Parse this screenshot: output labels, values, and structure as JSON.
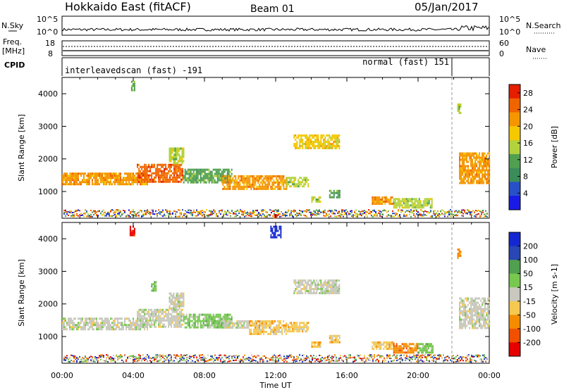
{
  "header": {
    "station": "Hokkaido East (fitACF)",
    "beam": "Beam 01",
    "date": "05/Jan/2017"
  },
  "noise_panel": {
    "left_label": "N.Sky",
    "right_label": "N.Search",
    "left_ticks": [
      "10^5",
      "10^0"
    ],
    "right_ticks": [
      "10^5",
      "10^0"
    ]
  },
  "freq_panel": {
    "left_label_line1": "Freq.",
    "left_label_line2": "[MHz]",
    "left_ticks": [
      "18",
      "8"
    ],
    "right_ticks": [
      "60",
      "0"
    ],
    "right_label": "Nave"
  },
  "cpid_panel": {
    "label": "CPID",
    "modes": [
      {
        "text": "interleavedscan (fast) -191",
        "start_hour": 0,
        "end_hour": 21.9
      },
      {
        "text": "normal (fast) 151",
        "start_hour": 21.9,
        "end_hour": 24
      }
    ]
  },
  "colors": {
    "power": [
      "#1a1ae6",
      "#2850c8",
      "#3c8c5a",
      "#50a050",
      "#b4d23c",
      "#f5c800",
      "#f59600",
      "#f06400",
      "#e61e00"
    ],
    "velocity": [
      "#e60000",
      "#f05000",
      "#f58c00",
      "#f5c850",
      "#c8c8be",
      "#78c850",
      "#50a050",
      "#2846b4",
      "#1428d2"
    ]
  },
  "chart_data": [
    {
      "type": "heatmap",
      "title": "",
      "xlabel": "Time UT",
      "ylabel": "Slant Range [km]",
      "xlim_hours": [
        0,
        24
      ],
      "ylim_km": [
        180,
        4500
      ],
      "x_ticks": [
        "00:00",
        "04:00",
        "08:00",
        "12:00",
        "16:00",
        "20:00",
        "00:00"
      ],
      "y_ticks": [
        "1000",
        "2000",
        "3000",
        "4000"
      ],
      "colorbar": {
        "label": "Power [dB]",
        "ticks": [
          "4",
          "8",
          "12",
          "16",
          "20",
          "24",
          "28"
        ],
        "range": [
          0,
          30
        ]
      },
      "regions": [
        {
          "t0": 0.0,
          "t1": 4.8,
          "r0": 1230,
          "r1": 1580,
          "value": 22
        },
        {
          "t0": 4.2,
          "t1": 6.8,
          "r0": 1300,
          "r1": 1850,
          "value": 24
        },
        {
          "t0": 6.0,
          "t1": 6.8,
          "r0": 1850,
          "r1": 2350,
          "value": 16
        },
        {
          "t0": 6.8,
          "t1": 9.5,
          "r0": 1300,
          "r1": 1700,
          "value": 12
        },
        {
          "t0": 9.0,
          "t1": 12.6,
          "r0": 1050,
          "r1": 1500,
          "value": 20
        },
        {
          "t0": 12.6,
          "t1": 13.8,
          "r0": 1150,
          "r1": 1450,
          "value": 14
        },
        {
          "t0": 13.0,
          "t1": 15.6,
          "r0": 2350,
          "r1": 2750,
          "value": 18
        },
        {
          "t0": 14.0,
          "t1": 14.5,
          "r0": 700,
          "r1": 850,
          "value": 16
        },
        {
          "t0": 15.0,
          "t1": 15.6,
          "r0": 850,
          "r1": 1050,
          "value": 12
        },
        {
          "t0": 17.4,
          "t1": 18.6,
          "r0": 600,
          "r1": 850,
          "value": 20
        },
        {
          "t0": 18.6,
          "t1": 20.8,
          "r0": 500,
          "r1": 800,
          "value": 14
        },
        {
          "t0": 22.3,
          "t1": 24.0,
          "r0": 1250,
          "r1": 2200,
          "value": 22
        },
        {
          "t0": 22.2,
          "t1": 22.4,
          "r0": 3400,
          "r1": 3700,
          "value": 14
        },
        {
          "t0": 3.8,
          "t1": 4.1,
          "r0": 4100,
          "r1": 4400,
          "value": 12
        },
        {
          "t0": 11.9,
          "t1": 12.1,
          "r0": 200,
          "r1": 300,
          "value": 28
        }
      ]
    },
    {
      "type": "heatmap",
      "title": "",
      "xlabel": "Time UT",
      "ylabel": "Slant Range [km]",
      "xlim_hours": [
        0,
        24
      ],
      "ylim_km": [
        180,
        4500
      ],
      "x_ticks": [
        "00:00",
        "04:00",
        "08:00",
        "12:00",
        "16:00",
        "20:00",
        "00:00"
      ],
      "y_ticks": [
        "1000",
        "2000",
        "3000",
        "4000"
      ],
      "colorbar": {
        "label": "Velocity [m s-1]",
        "ticks": [
          "200",
          "100",
          "50",
          "15",
          "-15",
          "-50",
          "-100",
          "-200"
        ],
        "range": [
          -250,
          250
        ]
      },
      "regions": [
        {
          "t0": 0.0,
          "t1": 4.8,
          "r0": 1230,
          "r1": 1580,
          "value": 0
        },
        {
          "t0": 4.2,
          "t1": 6.8,
          "r0": 1300,
          "r1": 1850,
          "value": 0
        },
        {
          "t0": 6.0,
          "t1": 6.8,
          "r0": 1850,
          "r1": 2350,
          "value": 0
        },
        {
          "t0": 6.8,
          "t1": 9.5,
          "r0": 1300,
          "r1": 1700,
          "value": 30
        },
        {
          "t0": 9.0,
          "t1": 10.5,
          "r0": 1250,
          "r1": 1500,
          "value": 0
        },
        {
          "t0": 10.5,
          "t1": 12.6,
          "r0": 1050,
          "r1": 1500,
          "value": -40
        },
        {
          "t0": 12.6,
          "t1": 13.8,
          "r0": 1150,
          "r1": 1450,
          "value": -40
        },
        {
          "t0": 13.0,
          "t1": 15.6,
          "r0": 2350,
          "r1": 2750,
          "value": 0
        },
        {
          "t0": 14.0,
          "t1": 14.5,
          "r0": 700,
          "r1": 850,
          "value": -80
        },
        {
          "t0": 15.0,
          "t1": 15.6,
          "r0": 850,
          "r1": 1050,
          "value": -40
        },
        {
          "t0": 17.4,
          "t1": 18.6,
          "r0": 600,
          "r1": 850,
          "value": -60
        },
        {
          "t0": 18.6,
          "t1": 20.0,
          "r0": 500,
          "r1": 800,
          "value": -120
        },
        {
          "t0": 20.0,
          "t1": 20.8,
          "r0": 500,
          "r1": 800,
          "value": 60
        },
        {
          "t0": 22.3,
          "t1": 24.0,
          "r0": 1250,
          "r1": 2200,
          "value": 0
        },
        {
          "t0": 22.2,
          "t1": 22.4,
          "r0": 3400,
          "r1": 3700,
          "value": -120
        },
        {
          "t0": 3.8,
          "t1": 4.1,
          "r0": 4100,
          "r1": 4400,
          "value": -200
        },
        {
          "t0": 11.7,
          "t1": 12.3,
          "r0": 4050,
          "r1": 4400,
          "value": 220
        },
        {
          "t0": 5.0,
          "t1": 5.3,
          "r0": 2400,
          "r1": 2700,
          "value": 60
        }
      ]
    }
  ]
}
